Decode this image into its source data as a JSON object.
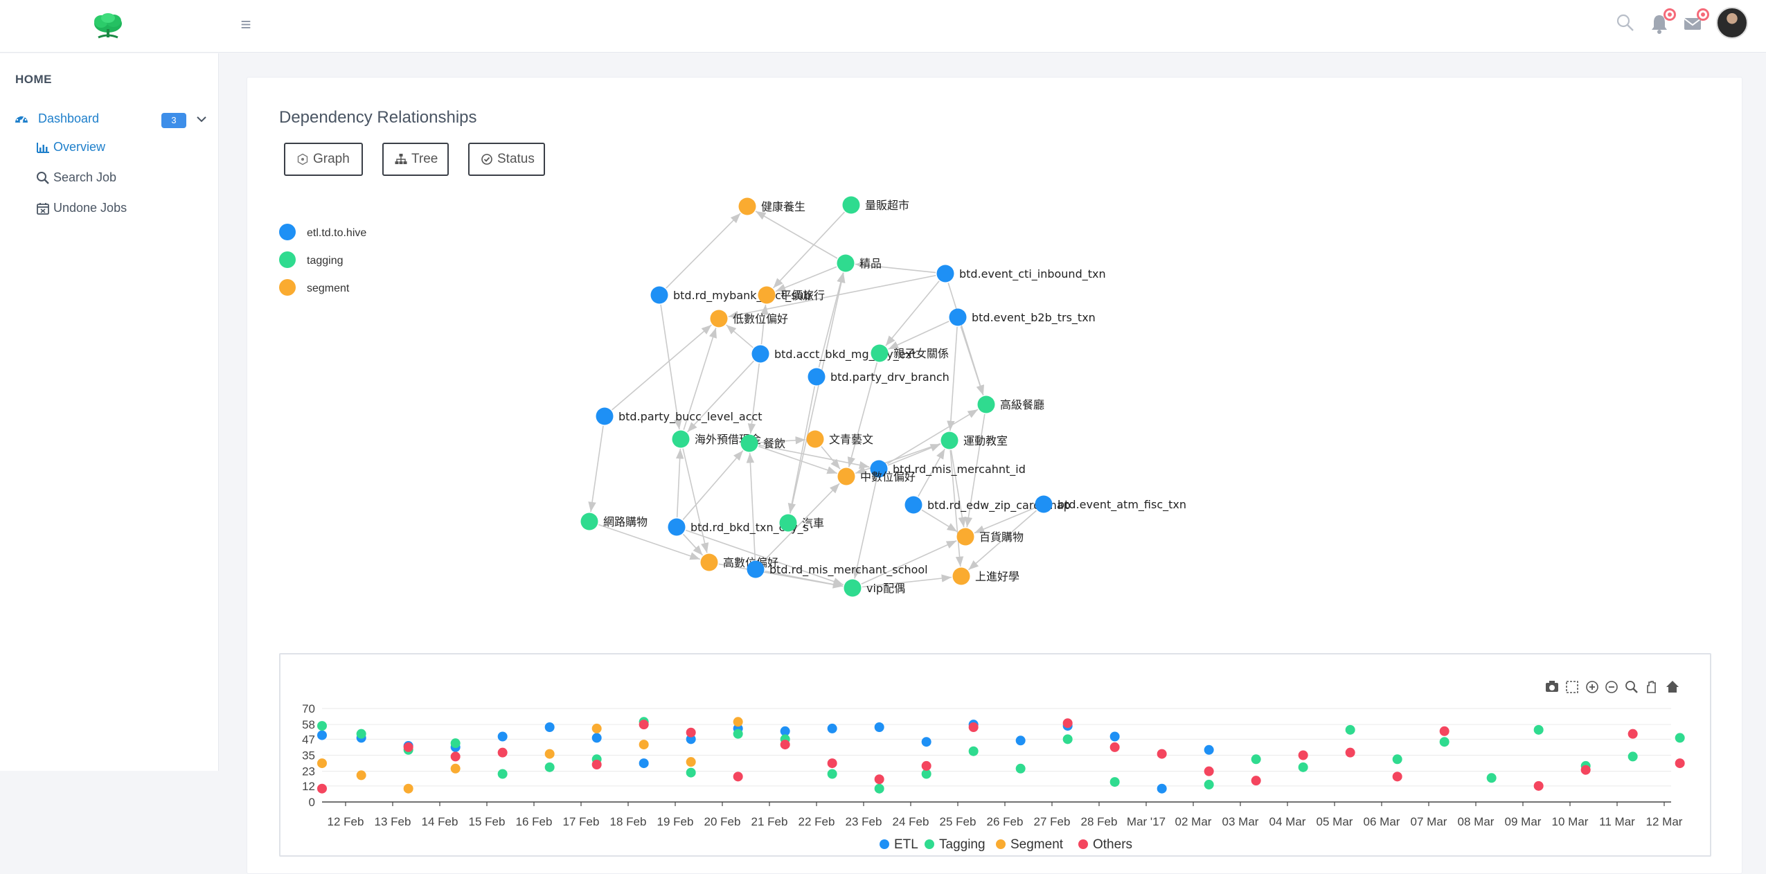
{
  "topbar": {
    "logo_icon": "tree-logo-icon",
    "menu_icon": "hamburger-menu-icon",
    "search_icon": "search-icon",
    "bell_icon": "bell-icon",
    "mail_icon": "mail-icon"
  },
  "sidebar": {
    "home_label": "HOME",
    "dashboard": {
      "label": "Dashboard",
      "badge": "3",
      "icon": "dashboard-gauge-icon"
    },
    "items": [
      {
        "label": "Overview",
        "icon": "bar-chart-icon",
        "active": true
      },
      {
        "label": "Search Job",
        "icon": "search-icon",
        "active": false
      },
      {
        "label": "Undone Jobs",
        "icon": "calendar-x-icon",
        "active": false
      }
    ]
  },
  "main": {
    "title": "Dependency Relationships",
    "buttons": [
      {
        "label": "Graph",
        "icon": "graph-icon"
      },
      {
        "label": "Tree",
        "icon": "sitemap-icon"
      },
      {
        "label": "Status",
        "icon": "check-circle-icon"
      }
    ]
  },
  "graph": {
    "legend": [
      {
        "name": "etl.td.to.hive",
        "color": "#1e90f5"
      },
      {
        "name": "tagging",
        "color": "#2fdb8f"
      },
      {
        "name": "segment",
        "color": "#faab30"
      }
    ],
    "nodes": [
      {
        "id": 0,
        "label": "健康養生",
        "type": 2
      },
      {
        "id": 1,
        "label": "量販超市",
        "type": 1
      },
      {
        "id": 2,
        "label": "精品",
        "type": 1
      },
      {
        "id": 3,
        "label": "btd.event_cti_inbound_txn",
        "type": 0
      },
      {
        "id": 4,
        "label": "btd.rd_mybank_acct_sub",
        "type": 0
      },
      {
        "id": 5,
        "label": "平價旅行",
        "type": 2
      },
      {
        "id": 6,
        "label": "低數位偏好",
        "type": 2
      },
      {
        "id": 7,
        "label": "btd.event_b2b_trs_txn",
        "type": 0
      },
      {
        "id": 8,
        "label": "btd.acct_bkd_mg_ccy_ext",
        "type": 0
      },
      {
        "id": 9,
        "label": "親子女關係",
        "type": 1
      },
      {
        "id": 10,
        "label": "btd.party_drv_branch",
        "type": 0
      },
      {
        "id": 11,
        "label": "btd.party_bucc_level_acct",
        "type": 0
      },
      {
        "id": 12,
        "label": "高級餐廳",
        "type": 1
      },
      {
        "id": 13,
        "label": "海外預借現金",
        "type": 1
      },
      {
        "id": 14,
        "label": "餐飲",
        "type": 1
      },
      {
        "id": 15,
        "label": "文青藝文",
        "type": 2
      },
      {
        "id": 16,
        "label": "運動教室",
        "type": 1
      },
      {
        "id": 17,
        "label": "btd.rd_mis_mercahnt_id",
        "type": 0
      },
      {
        "id": 18,
        "label": "中數位偏好",
        "type": 2
      },
      {
        "id": 19,
        "label": "btd.rd_edw_zip_card_map",
        "type": 0
      },
      {
        "id": 20,
        "label": "btd.event_atm_fisc_txn",
        "type": 0
      },
      {
        "id": 21,
        "label": "網路購物",
        "type": 1
      },
      {
        "id": 22,
        "label": "btd.rd_bkd_txn_ccy_s",
        "type": 0
      },
      {
        "id": 23,
        "label": "汽車",
        "type": 1
      },
      {
        "id": 24,
        "label": "百貨購物",
        "type": 2
      },
      {
        "id": 25,
        "label": "高數位偏好",
        "type": 2
      },
      {
        "id": 26,
        "label": "btd.rd_mis_merchant_school",
        "type": 0
      },
      {
        "id": 27,
        "label": "上進好學",
        "type": 2
      },
      {
        "id": 28,
        "label": "vip配偶",
        "type": 1
      }
    ],
    "edges": [
      [
        4,
        0
      ],
      [
        2,
        0
      ],
      [
        2,
        5
      ],
      [
        1,
        5
      ],
      [
        3,
        2
      ],
      [
        3,
        6
      ],
      [
        3,
        9
      ],
      [
        7,
        9
      ],
      [
        7,
        12
      ],
      [
        7,
        16
      ],
      [
        4,
        13
      ],
      [
        11,
        6
      ],
      [
        11,
        21
      ],
      [
        8,
        6
      ],
      [
        8,
        5
      ],
      [
        8,
        13
      ],
      [
        8,
        14
      ],
      [
        10,
        23
      ],
      [
        9,
        18
      ],
      [
        14,
        15
      ],
      [
        14,
        17
      ],
      [
        14,
        18
      ],
      [
        13,
        25
      ],
      [
        22,
        13
      ],
      [
        22,
        14
      ],
      [
        21,
        25
      ],
      [
        22,
        25
      ],
      [
        26,
        14
      ],
      [
        26,
        28
      ],
      [
        25,
        28
      ],
      [
        17,
        16
      ],
      [
        17,
        12
      ],
      [
        17,
        28
      ],
      [
        19,
        24
      ],
      [
        19,
        16
      ],
      [
        20,
        24
      ],
      [
        20,
        27
      ],
      [
        16,
        27
      ],
      [
        16,
        24
      ],
      [
        28,
        27
      ],
      [
        12,
        24
      ],
      [
        10,
        2
      ],
      [
        26,
        18
      ],
      [
        15,
        18
      ],
      [
        28,
        24
      ],
      [
        3,
        12
      ],
      [
        22,
        28
      ],
      [
        13,
        6
      ],
      [
        23,
        2
      ],
      [
        16,
        18
      ]
    ]
  },
  "chart_toolbar": [
    "camera-icon",
    "box-select-icon",
    "zoom-in-icon",
    "zoom-out-icon",
    "magnifier-icon",
    "pan-hand-icon",
    "home-icon"
  ],
  "chart_data": {
    "type": "scatter",
    "x": [
      "12 Feb",
      "13 Feb",
      "14 Feb",
      "15 Feb",
      "16 Feb",
      "17 Feb",
      "18 Feb",
      "19 Feb",
      "20 Feb",
      "21 Feb",
      "22 Feb",
      "23 Feb",
      "24 Feb",
      "25 Feb",
      "26 Feb",
      "27 Feb",
      "28 Feb",
      "Mar '17",
      "02 Mar",
      "03 Mar",
      "04 Mar",
      "05 Mar",
      "06 Mar",
      "07 Mar",
      "08 Mar",
      "09 Mar",
      "10 Mar",
      "11 Mar",
      "12 Mar"
    ],
    "yticks": [
      0,
      12,
      23,
      35,
      47,
      58,
      70
    ],
    "ylim": [
      0,
      70
    ],
    "grid": true,
    "legend_position": "bottom",
    "series": [
      {
        "name": "ETL",
        "color": "#1e90f5",
        "points": [
          [
            "2017-02-11 12:00",
            50
          ],
          [
            "2017-02-12 08:00",
            48
          ],
          [
            "2017-02-13 08:00",
            42
          ],
          [
            "2017-02-14 08:00",
            41
          ],
          [
            "2017-02-15 08:00",
            49
          ],
          [
            "2017-02-16 08:00",
            56
          ],
          [
            "2017-02-17 08:00",
            48
          ],
          [
            "2017-02-18 08:00",
            29
          ],
          [
            "2017-02-19 08:00",
            47
          ],
          [
            "2017-02-20 08:00",
            55
          ],
          [
            "2017-02-21 08:00",
            53
          ],
          [
            "2017-02-22 08:00",
            55
          ],
          [
            "2017-02-23 08:00",
            56
          ],
          [
            "2017-02-24 08:00",
            45
          ],
          [
            "2017-02-25 08:00",
            58
          ],
          [
            "2017-02-26 08:00",
            46
          ],
          [
            "2017-02-27 08:00",
            57
          ],
          [
            "2017-02-28 08:00",
            49
          ],
          [
            "2017-03-01 08:00",
            10
          ],
          [
            "2017-03-02 08:00",
            39
          ]
        ]
      },
      {
        "name": "Tagging",
        "color": "#2fdb8f",
        "points": [
          [
            "2017-02-11 12:00",
            57
          ],
          [
            "2017-02-12 08:00",
            51
          ],
          [
            "2017-02-13 08:00",
            39
          ],
          [
            "2017-02-14 08:00",
            44
          ],
          [
            "2017-02-15 08:00",
            21
          ],
          [
            "2017-02-16 08:00",
            26
          ],
          [
            "2017-02-17 08:00",
            32
          ],
          [
            "2017-02-18 08:00",
            60
          ],
          [
            "2017-02-19 08:00",
            22
          ],
          [
            "2017-02-20 08:00",
            51
          ],
          [
            "2017-02-21 08:00",
            47
          ],
          [
            "2017-02-22 08:00",
            21
          ],
          [
            "2017-02-23 08:00",
            10
          ],
          [
            "2017-02-24 08:00",
            21
          ],
          [
            "2017-02-25 08:00",
            38
          ],
          [
            "2017-02-26 08:00",
            25
          ],
          [
            "2017-02-27 08:00",
            47
          ],
          [
            "2017-02-28 08:00",
            15
          ],
          [
            "2017-03-02 08:00",
            13
          ],
          [
            "2017-03-03 08:00",
            32
          ],
          [
            "2017-03-04 08:00",
            26
          ],
          [
            "2017-03-05 08:00",
            54
          ],
          [
            "2017-03-06 08:00",
            32
          ],
          [
            "2017-03-07 08:00",
            45
          ],
          [
            "2017-03-08 08:00",
            18
          ],
          [
            "2017-03-09 08:00",
            54
          ],
          [
            "2017-03-10 08:00",
            27
          ],
          [
            "2017-03-11 08:00",
            34
          ],
          [
            "2017-03-12 08:00",
            48
          ]
        ]
      },
      {
        "name": "Segment",
        "color": "#faab30",
        "points": [
          [
            "2017-02-11 12:00",
            29
          ],
          [
            "2017-02-12 08:00",
            20
          ],
          [
            "2017-02-13 08:00",
            10
          ],
          [
            "2017-02-14 08:00",
            25
          ],
          [
            "2017-02-16 08:00",
            36
          ],
          [
            "2017-02-17 08:00",
            55
          ],
          [
            "2017-02-18 08:00",
            43
          ],
          [
            "2017-02-19 08:00",
            30
          ],
          [
            "2017-02-20 08:00",
            60
          ]
        ]
      },
      {
        "name": "Others",
        "color": "#f4455e",
        "points": [
          [
            "2017-02-11 12:00",
            10
          ],
          [
            "2017-02-13 08:00",
            41
          ],
          [
            "2017-02-14 08:00",
            34
          ],
          [
            "2017-02-15 08:00",
            37
          ],
          [
            "2017-02-17 08:00",
            28
          ],
          [
            "2017-02-18 08:00",
            58
          ],
          [
            "2017-02-19 08:00",
            52
          ],
          [
            "2017-02-20 08:00",
            19
          ],
          [
            "2017-02-21 08:00",
            43
          ],
          [
            "2017-02-22 08:00",
            29
          ],
          [
            "2017-02-23 08:00",
            17
          ],
          [
            "2017-02-24 08:00",
            27
          ],
          [
            "2017-02-25 08:00",
            56
          ],
          [
            "2017-02-27 08:00",
            59
          ],
          [
            "2017-02-28 08:00",
            41
          ],
          [
            "2017-03-01 08:00",
            36
          ],
          [
            "2017-03-02 08:00",
            23
          ],
          [
            "2017-03-03 08:00",
            16
          ],
          [
            "2017-03-04 08:00",
            35
          ],
          [
            "2017-03-05 08:00",
            37
          ],
          [
            "2017-03-06 08:00",
            19
          ],
          [
            "2017-03-07 08:00",
            53
          ],
          [
            "2017-03-09 08:00",
            12
          ],
          [
            "2017-03-10 08:00",
            24
          ],
          [
            "2017-03-11 08:00",
            51
          ],
          [
            "2017-03-12 08:00",
            29
          ]
        ]
      }
    ]
  }
}
